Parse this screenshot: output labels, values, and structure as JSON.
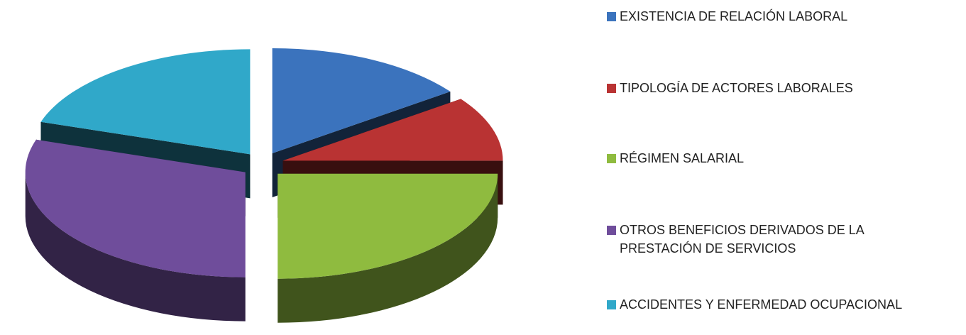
{
  "chart_data": {
    "type": "pie",
    "categories": [
      "EXISTENCIA DE RELACIÓN LABORAL",
      "TIPOLOGÍA DE ACTORES LABORALES",
      "RÉGIMEN SALARIAL",
      "OTROS BENEFICIOS DERIVADOS DE LA PRESTACIÓN DE SERVICIOS",
      "ACCIDENTES Y ENFERMEDAD OCUPACIONAL"
    ],
    "values": [
      15,
      10,
      25,
      30,
      20
    ],
    "colors": [
      "#3b73bd",
      "#b93333",
      "#8fbb3f",
      "#6f4d9b",
      "#30a8c9"
    ],
    "legend": "right"
  }
}
